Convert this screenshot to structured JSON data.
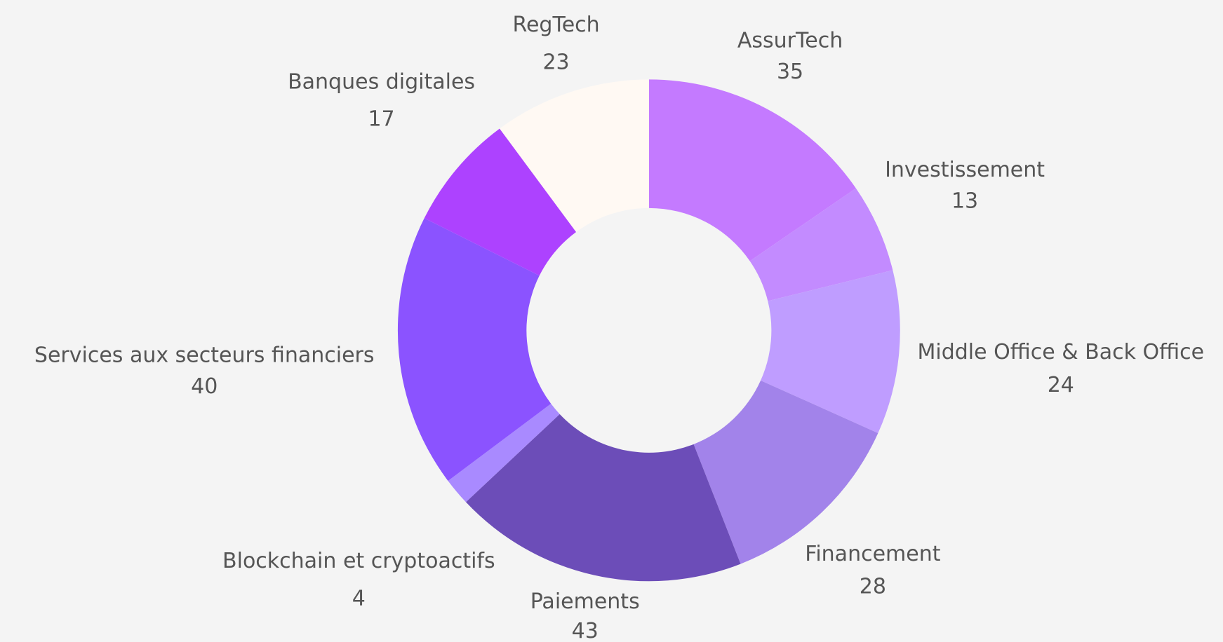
{
  "chart_data": {
    "type": "donut",
    "categories": [
      "AssurTech",
      "Investissement",
      "Middle Office & Back Office",
      "Financement",
      "Paiements",
      "Blockchain et cryptoactifs",
      "Services aux secteurs financiers",
      "Banques digitales",
      "RegTech"
    ],
    "values": [
      35,
      13,
      24,
      28,
      43,
      4,
      40,
      17,
      23
    ],
    "colors": [
      "#c47aff",
      "#c38bff",
      "#bf9dff",
      "#a283ea",
      "#6c4db8",
      "#a98aff",
      "#8b53ff",
      "#ad42ff",
      "#fff9f3"
    ]
  }
}
